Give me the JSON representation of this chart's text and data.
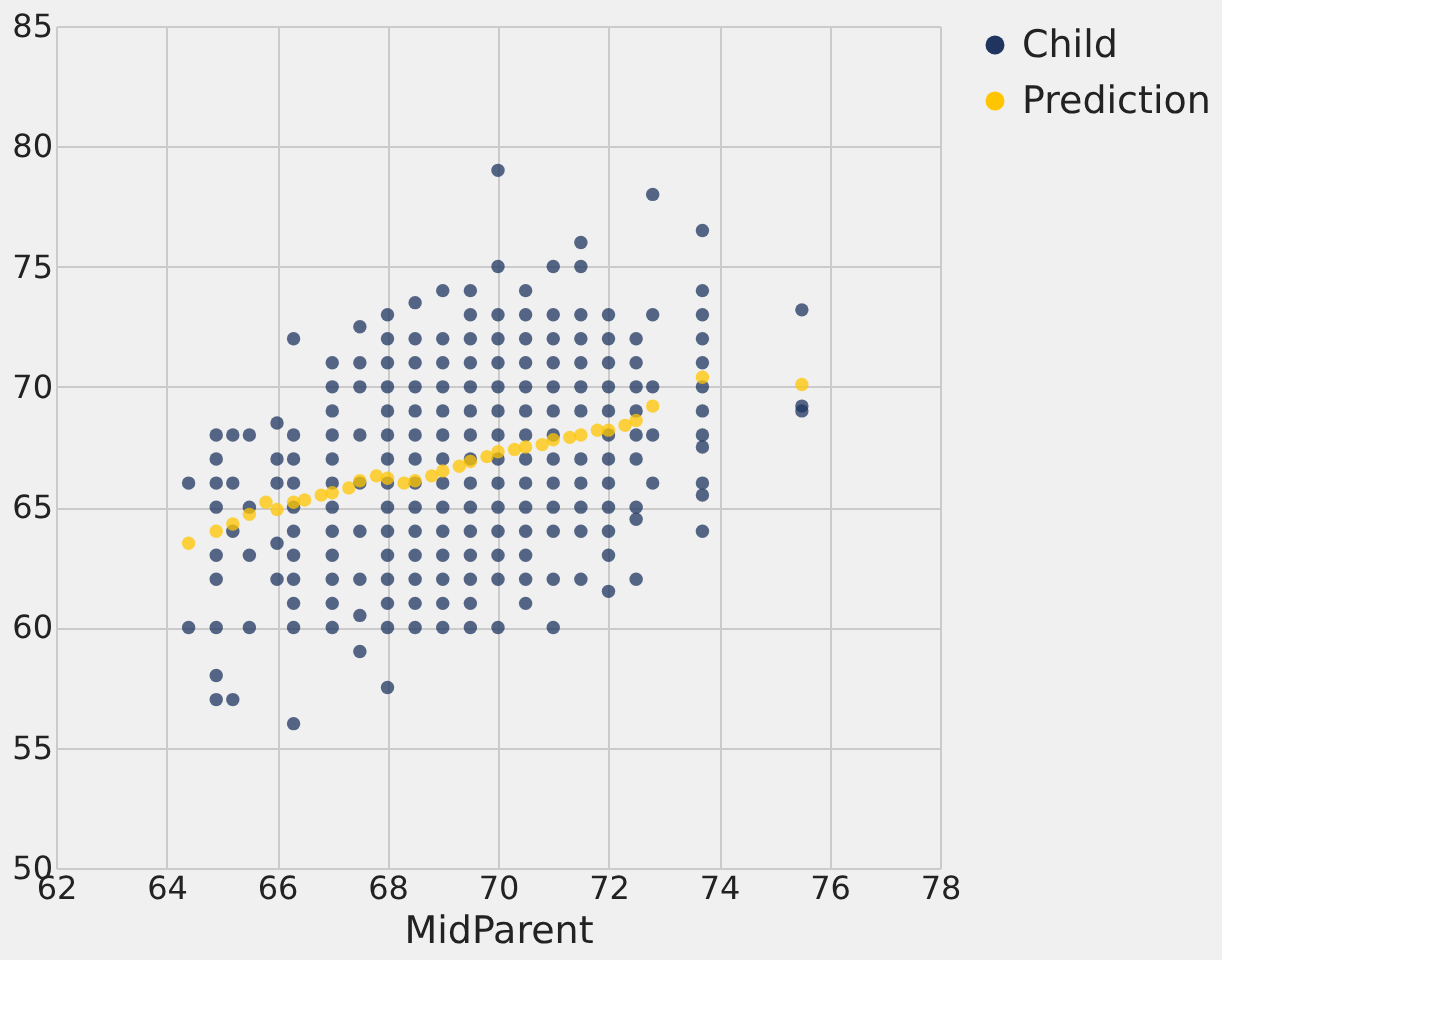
{
  "chart_data": {
    "type": "scatter",
    "xlabel": "MidParent",
    "xlim": [
      62,
      78
    ],
    "xticks": [
      62,
      64,
      66,
      68,
      70,
      72,
      74,
      76,
      78
    ],
    "ylim": [
      50,
      85
    ],
    "yticks": [
      50,
      55,
      60,
      65,
      70,
      75,
      80,
      85
    ],
    "grid": true,
    "legend": "top right",
    "marker": "circle",
    "series": [
      {
        "name": "Child",
        "color": "#1f3560",
        "x": [
          64.4,
          64.4,
          64.9,
          64.9,
          64.9,
          64.9,
          64.9,
          64.9,
          64.9,
          64.9,
          64.9,
          65.2,
          65.2,
          65.2,
          65.2,
          65.5,
          65.5,
          65.5,
          65.5,
          66.0,
          66.0,
          66.0,
          66.0,
          66.0,
          66.3,
          66.3,
          66.3,
          66.3,
          66.3,
          66.3,
          66.3,
          66.3,
          66.3,
          66.3,
          66.3,
          67.0,
          67.0,
          67.0,
          67.0,
          67.0,
          67.0,
          67.0,
          67.0,
          67.0,
          67.0,
          67.0,
          67.0,
          67.5,
          67.5,
          67.5,
          67.5,
          67.5,
          67.5,
          67.5,
          67.5,
          67.5,
          68.0,
          68.0,
          68.0,
          68.0,
          68.0,
          68.0,
          68.0,
          68.0,
          68.0,
          68.0,
          68.0,
          68.0,
          68.0,
          68.0,
          68.0,
          68.5,
          68.5,
          68.5,
          68.5,
          68.5,
          68.5,
          68.5,
          68.5,
          68.5,
          68.5,
          68.5,
          68.5,
          68.5,
          68.5,
          69.0,
          69.0,
          69.0,
          69.0,
          69.0,
          69.0,
          69.0,
          69.0,
          69.0,
          69.0,
          69.0,
          69.0,
          69.0,
          69.0,
          69.5,
          69.5,
          69.5,
          69.5,
          69.5,
          69.5,
          69.5,
          69.5,
          69.5,
          69.5,
          69.5,
          69.5,
          69.5,
          69.5,
          69.5,
          70.0,
          70.0,
          70.0,
          70.0,
          70.0,
          70.0,
          70.0,
          70.0,
          70.0,
          70.0,
          70.0,
          70.0,
          70.0,
          70.0,
          70.0,
          70.5,
          70.5,
          70.5,
          70.5,
          70.5,
          70.5,
          70.5,
          70.5,
          70.5,
          70.5,
          70.5,
          70.5,
          70.5,
          70.5,
          71.0,
          71.0,
          71.0,
          71.0,
          71.0,
          71.0,
          71.0,
          71.0,
          71.0,
          71.0,
          71.0,
          71.0,
          71.0,
          71.5,
          71.5,
          71.5,
          71.5,
          71.5,
          71.5,
          71.5,
          71.5,
          71.5,
          71.5,
          71.5,
          71.5,
          72.0,
          72.0,
          72.0,
          72.0,
          72.0,
          72.0,
          72.0,
          72.0,
          72.0,
          72.0,
          72.0,
          72.0,
          72.5,
          72.5,
          72.5,
          72.5,
          72.5,
          72.5,
          72.5,
          72.5,
          72.5,
          72.8,
          72.8,
          72.8,
          72.8,
          72.8,
          73.7,
          73.7,
          73.7,
          73.7,
          73.7,
          73.7,
          73.7,
          73.7,
          73.7,
          73.7,
          73.7,
          73.7,
          75.5,
          75.5,
          75.5
        ],
        "values": [
          60,
          66,
          57,
          58,
          60,
          62,
          63,
          65,
          66,
          67,
          68,
          57,
          64,
          66,
          68,
          60,
          63,
          65,
          68,
          62,
          63.5,
          66,
          67,
          68.5,
          56,
          60,
          61,
          62,
          63,
          64,
          65,
          66,
          67,
          68,
          72,
          60,
          61,
          62,
          63,
          64,
          65,
          66,
          67,
          68,
          69,
          70,
          71,
          59,
          60.5,
          62,
          64,
          66,
          68,
          70,
          71,
          72.5,
          57.5,
          60,
          61,
          62,
          63,
          64,
          65,
          66,
          67,
          68,
          69,
          70,
          71,
          72,
          73,
          60,
          61,
          62,
          63,
          64,
          65,
          66,
          67,
          68,
          69,
          70,
          71,
          72,
          73.5,
          60,
          61,
          62,
          63,
          64,
          65,
          66,
          67,
          68,
          69,
          70,
          71,
          72,
          74,
          60,
          61,
          62,
          63,
          64,
          65,
          66,
          67,
          68,
          69,
          70,
          71,
          72,
          73,
          74,
          60,
          62,
          63,
          64,
          65,
          66,
          67,
          68,
          69,
          70,
          71,
          72,
          73,
          75,
          79,
          61,
          62,
          63,
          64,
          65,
          66,
          67,
          68,
          69,
          70,
          71,
          72,
          73,
          74,
          60,
          62,
          64,
          65,
          66,
          67,
          68,
          69,
          70,
          71,
          72,
          73,
          75,
          62,
          64,
          65,
          66,
          67,
          69,
          70,
          71,
          72,
          73,
          75,
          76,
          61.5,
          63,
          64,
          65,
          66,
          67,
          68,
          69,
          70,
          71,
          72,
          73,
          62,
          64.5,
          65,
          67,
          68,
          69,
          70,
          71,
          72,
          66,
          68,
          70,
          73,
          78,
          64,
          65.5,
          66,
          67.5,
          68,
          69,
          70,
          71,
          72,
          73,
          74,
          76.5,
          69,
          69.2,
          73.2
        ]
      },
      {
        "name": "Prediction",
        "color": "#ffc500",
        "x": [
          64.4,
          64.9,
          65.2,
          65.5,
          65.8,
          66.0,
          66.3,
          66.5,
          66.8,
          67.0,
          67.3,
          67.5,
          67.8,
          68.0,
          68.3,
          68.5,
          68.8,
          69.0,
          69.3,
          69.5,
          69.8,
          70.0,
          70.3,
          70.5,
          70.8,
          71.0,
          71.3,
          71.5,
          71.8,
          72.0,
          72.3,
          72.5,
          72.8,
          73.7,
          75.5
        ],
        "values": [
          63.5,
          64,
          64.3,
          64.7,
          65.2,
          64.9,
          65.2,
          65.3,
          65.5,
          65.6,
          65.8,
          66.1,
          66.3,
          66.2,
          66.0,
          66.1,
          66.3,
          66.5,
          66.7,
          66.9,
          67.1,
          67.3,
          67.4,
          67.5,
          67.6,
          67.8,
          67.9,
          68.0,
          68.2,
          68.2,
          68.4,
          68.6,
          69.2,
          70.4,
          70.1
        ]
      }
    ]
  }
}
